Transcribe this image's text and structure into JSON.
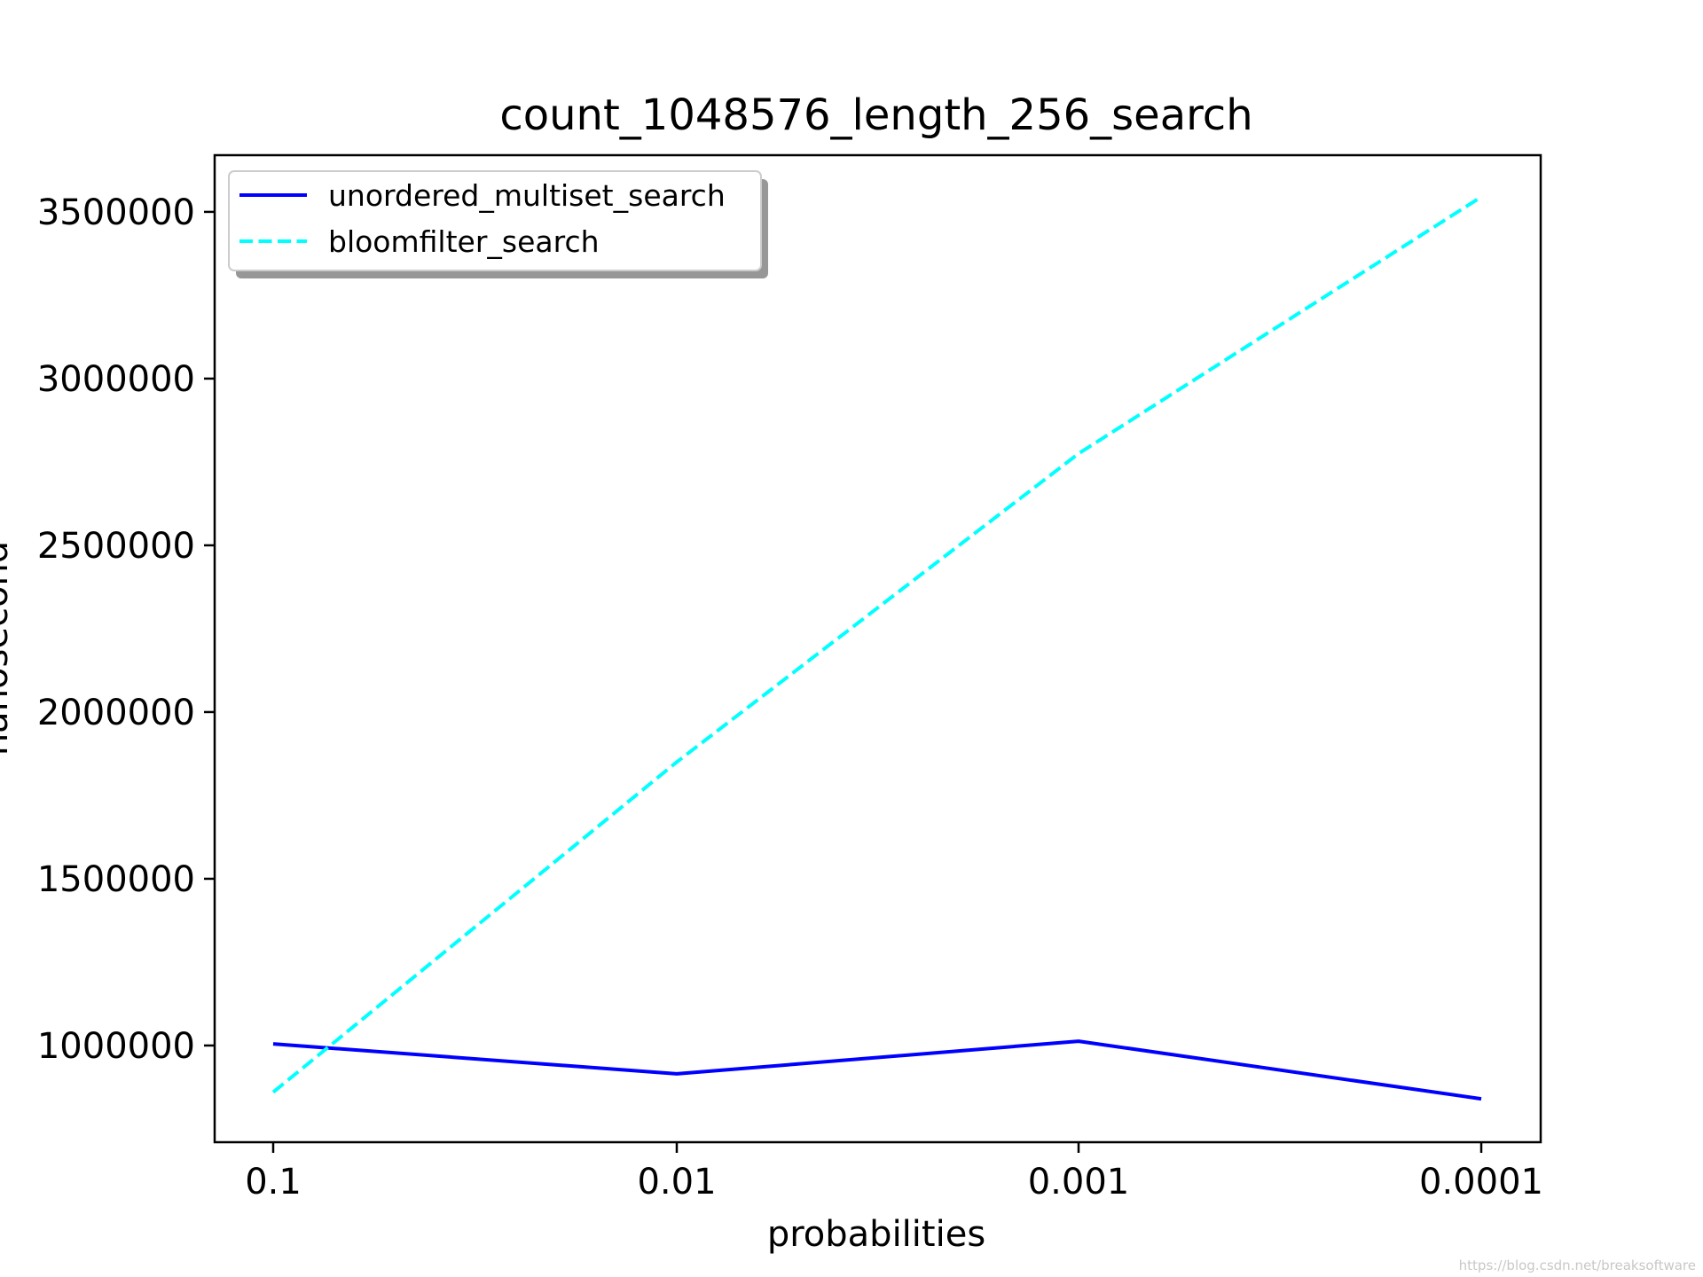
{
  "chart_data": {
    "type": "line",
    "title": "count_1048576_length_256_search",
    "xlabel": "probabilities",
    "ylabel": "nanosecond",
    "categories": [
      "0.1",
      "0.01",
      "0.001",
      "0.0001"
    ],
    "ylim": [
      710000,
      3670000
    ],
    "yticks": [
      1000000,
      1500000,
      2000000,
      2500000,
      3000000,
      3500000
    ],
    "ytick_labels": [
      "1000000",
      "1500000",
      "2000000",
      "2500000",
      "3000000",
      "3500000"
    ],
    "grid": false,
    "legend_position": "top-left",
    "series": [
      {
        "name": "unordered_multiset_search",
        "values": [
          1005000,
          915000,
          1013000,
          840000
        ],
        "color": "#0000ff",
        "style": "solid"
      },
      {
        "name": "bloomfilter_search",
        "values": [
          860000,
          1850000,
          2775000,
          3545000
        ],
        "color": "#00ffff",
        "style": "dashed"
      }
    ]
  },
  "watermark": "https://blog.csdn.net/breaksoftware"
}
